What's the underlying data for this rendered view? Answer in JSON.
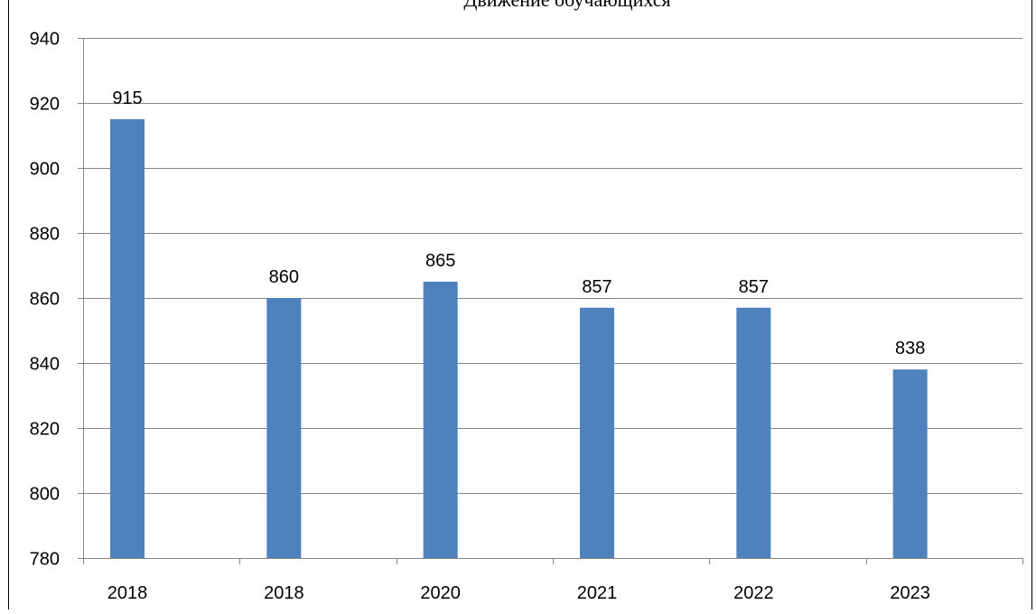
{
  "chart_data": {
    "type": "bar",
    "title": "Движение обучающихся",
    "categories": [
      "2018",
      "2018",
      "2020",
      "2021",
      "2022",
      "2023"
    ],
    "series": [
      {
        "values": [
          915,
          860,
          865,
          857,
          857,
          838
        ],
        "color": "#4f81bd"
      }
    ],
    "data_labels": [
      "915",
      "860",
      "865",
      "857",
      "857",
      "838"
    ],
    "ylim": [
      780,
      940
    ],
    "y_ticks": [
      780,
      800,
      820,
      840,
      860,
      880,
      900,
      920,
      940
    ],
    "y_tick_labels": [
      "780",
      "800",
      "820",
      "840",
      "860",
      "880",
      "900",
      "920",
      "940"
    ],
    "grid": true,
    "legend": "none"
  }
}
